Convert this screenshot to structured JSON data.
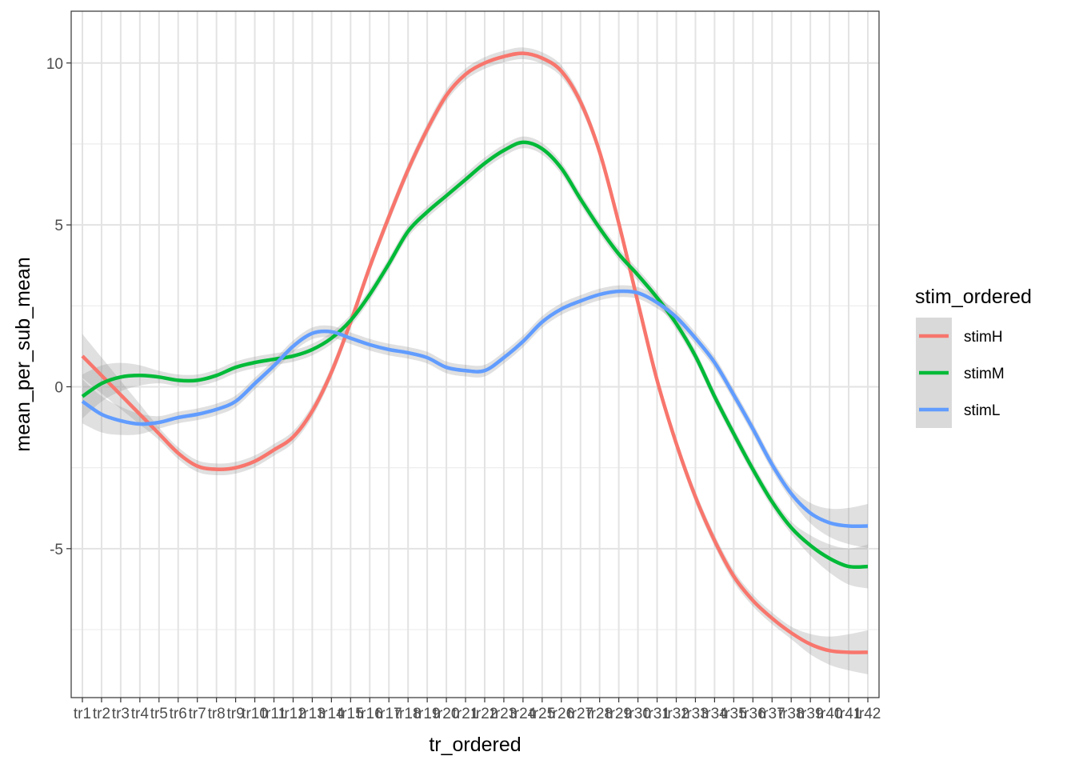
{
  "chart_data": {
    "type": "line",
    "title": "",
    "xlabel": "tr_ordered",
    "ylabel": "mean_per_sub_mean",
    "categories": [
      "tr1",
      "tr2",
      "tr3",
      "tr4",
      "tr5",
      "tr6",
      "tr7",
      "tr8",
      "tr9",
      "tr10",
      "tr11",
      "tr12",
      "tr13",
      "tr14",
      "tr15",
      "tr16",
      "tr17",
      "tr18",
      "tr19",
      "tr20",
      "tr21",
      "tr22",
      "tr23",
      "tr24",
      "tr25",
      "tr26",
      "tr27",
      "tr28",
      "tr29",
      "tr30",
      "tr31",
      "tr32",
      "tr33",
      "tr34",
      "tr35",
      "tr36",
      "tr37",
      "tr38",
      "tr39",
      "tr40",
      "tr41",
      "tr42"
    ],
    "yticks": [
      -5,
      0,
      5,
      10
    ],
    "ylim": [
      -9.6,
      11.6
    ],
    "grid": true,
    "smoothed": true,
    "confidence_band": true,
    "legend_title": "stim_ordered",
    "legend_position": "right",
    "series": [
      {
        "name": "stimH",
        "color": "#F8766D",
        "values": [
          0.95,
          0.35,
          -0.25,
          -0.85,
          -1.45,
          -2.05,
          -2.45,
          -2.55,
          -2.5,
          -2.3,
          -1.95,
          -1.55,
          -0.75,
          0.45,
          2.0,
          3.7,
          5.25,
          6.7,
          7.95,
          9.0,
          9.65,
          10.0,
          10.2,
          10.3,
          10.15,
          9.75,
          8.8,
          7.25,
          5.05,
          2.6,
          0.2,
          -1.75,
          -3.4,
          -4.75,
          -5.85,
          -6.6,
          -7.15,
          -7.6,
          -7.95,
          -8.15,
          -8.2,
          -8.2
        ]
      },
      {
        "name": "stimM",
        "color": "#00BA38",
        "values": [
          -0.3,
          0.1,
          0.3,
          0.35,
          0.3,
          0.2,
          0.2,
          0.35,
          0.6,
          0.75,
          0.85,
          0.95,
          1.15,
          1.5,
          2.05,
          2.85,
          3.8,
          4.8,
          5.4,
          5.9,
          6.4,
          6.9,
          7.3,
          7.55,
          7.35,
          6.75,
          5.8,
          4.9,
          4.1,
          3.45,
          2.75,
          1.95,
          0.95,
          -0.3,
          -1.45,
          -2.55,
          -3.55,
          -4.35,
          -4.9,
          -5.3,
          -5.55,
          -5.55
        ]
      },
      {
        "name": "stimL",
        "color": "#619CFF",
        "values": [
          -0.45,
          -0.85,
          -1.05,
          -1.15,
          -1.1,
          -0.95,
          -0.85,
          -0.7,
          -0.45,
          0.1,
          0.65,
          1.25,
          1.65,
          1.7,
          1.5,
          1.3,
          1.15,
          1.05,
          0.9,
          0.6,
          0.5,
          0.5,
          0.9,
          1.4,
          2.0,
          2.4,
          2.65,
          2.85,
          2.95,
          2.9,
          2.6,
          2.15,
          1.5,
          0.75,
          -0.25,
          -1.3,
          -2.4,
          -3.3,
          -3.9,
          -4.2,
          -4.3,
          -4.3
        ]
      }
    ]
  }
}
